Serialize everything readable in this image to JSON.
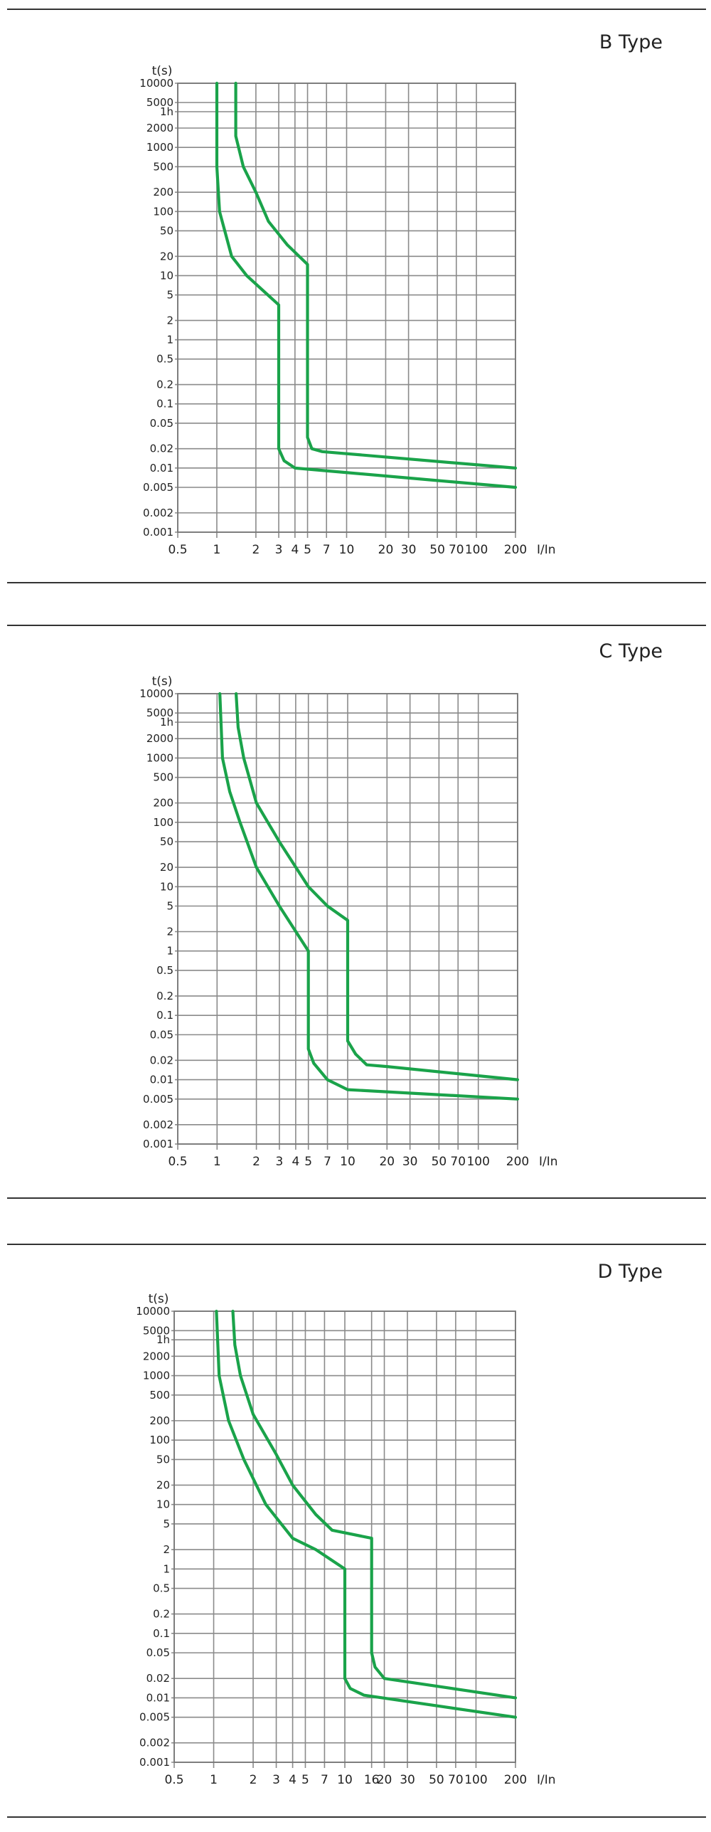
{
  "chart_data": [
    {
      "type": "line",
      "title": "B Type",
      "xlabel": "I/In",
      "ylabel": "t(s)",
      "x_scale": "log",
      "y_scale": "log",
      "xlim": [
        0.5,
        200
      ],
      "ylim": [
        0.001,
        10000
      ],
      "x_ticks": [
        0.5,
        1,
        2,
        3,
        4,
        5,
        7,
        10,
        20,
        30,
        50,
        70,
        100,
        200
      ],
      "x_tick_labels": [
        "0.5",
        "1",
        "2",
        "3",
        "4",
        "5",
        "7",
        "10",
        "20",
        "30",
        "50",
        "70",
        "100",
        "200"
      ],
      "y_ticks": [
        10000,
        5000,
        3600,
        2000,
        1000,
        500,
        200,
        100,
        50,
        20,
        10,
        5,
        2,
        1,
        0.5,
        0.2,
        0.1,
        0.05,
        0.02,
        0.01,
        0.005,
        0.002,
        0.001
      ],
      "y_tick_labels": [
        "10000",
        "5000",
        "1h",
        "2000",
        "1000",
        "500",
        "200",
        "100",
        "50",
        "20",
        "10",
        "5",
        "2",
        "1",
        "0.5",
        "0.2",
        "0.1",
        "0.05",
        "0.02",
        "0.01",
        "0.005",
        "0.002",
        "0.001"
      ],
      "grid": true,
      "color": "#1aa34a",
      "series": [
        {
          "values": [
            [
              1.0,
              10000
            ],
            [
              1.0,
              500
            ],
            [
              1.05,
              100
            ],
            [
              1.3,
              20
            ],
            [
              1.7,
              10
            ],
            [
              3.0,
              3.5
            ],
            [
              3.0,
              0.02
            ],
            [
              3.3,
              0.013
            ],
            [
              4.0,
              0.01
            ],
            [
              200,
              0.005
            ]
          ]
        },
        {
          "values": [
            [
              1.4,
              10000
            ],
            [
              1.4,
              1500
            ],
            [
              1.6,
              500
            ],
            [
              2.0,
              200
            ],
            [
              2.5,
              70
            ],
            [
              3.5,
              30
            ],
            [
              5.0,
              15
            ],
            [
              5.0,
              0.03
            ],
            [
              5.4,
              0.02
            ],
            [
              6.5,
              0.018
            ],
            [
              200,
              0.01
            ]
          ]
        }
      ]
    },
    {
      "type": "line",
      "title": "C Type",
      "xlabel": "I/In",
      "ylabel": "t(s)",
      "x_scale": "log",
      "y_scale": "log",
      "xlim": [
        0.5,
        200
      ],
      "ylim": [
        0.001,
        10000
      ],
      "x_ticks": [
        0.5,
        1,
        2,
        3,
        4,
        5,
        7,
        10,
        20,
        30,
        50,
        70,
        100,
        200
      ],
      "x_tick_labels": [
        "0.5",
        "1",
        "2",
        "3",
        "4",
        "5",
        "7",
        "10",
        "20",
        "30",
        "50",
        "70",
        "100",
        "200"
      ],
      "y_ticks": [
        10000,
        5000,
        3600,
        2000,
        1000,
        500,
        200,
        100,
        50,
        20,
        10,
        5,
        2,
        1,
        0.5,
        0.2,
        0.1,
        0.05,
        0.02,
        0.01,
        0.005,
        0.002,
        0.001
      ],
      "y_tick_labels": [
        "10000",
        "5000",
        "1h",
        "2000",
        "1000",
        "500",
        "200",
        "100",
        "50",
        "20",
        "10",
        "5",
        "2",
        "1",
        "0.5",
        "0.2",
        "0.1",
        "0.05",
        "0.02",
        "0.01",
        "0.005",
        "0.002",
        "0.001"
      ],
      "grid": true,
      "color": "#1aa34a",
      "series": [
        {
          "values": [
            [
              1.05,
              10000
            ],
            [
              1.1,
              1000
            ],
            [
              1.25,
              300
            ],
            [
              1.5,
              100
            ],
            [
              2.0,
              20
            ],
            [
              3.0,
              5
            ],
            [
              5.0,
              1
            ],
            [
              5.0,
              0.03
            ],
            [
              5.5,
              0.018
            ],
            [
              7.0,
              0.01
            ],
            [
              10.0,
              0.007
            ],
            [
              200,
              0.005
            ]
          ]
        },
        {
          "values": [
            [
              1.4,
              10000
            ],
            [
              1.45,
              3000
            ],
            [
              1.6,
              1000
            ],
            [
              2.0,
              200
            ],
            [
              3.0,
              50
            ],
            [
              5.0,
              10
            ],
            [
              7.0,
              5
            ],
            [
              10.0,
              3
            ],
            [
              10.0,
              0.04
            ],
            [
              11.5,
              0.025
            ],
            [
              14.0,
              0.017
            ],
            [
              20.0,
              0.016
            ],
            [
              200,
              0.01
            ]
          ]
        }
      ]
    },
    {
      "type": "line",
      "title": "D Type",
      "xlabel": "I/In",
      "ylabel": "t(s)",
      "x_scale": "log",
      "y_scale": "log",
      "xlim": [
        0.5,
        200
      ],
      "ylim": [
        0.001,
        10000
      ],
      "x_ticks": [
        0.5,
        1,
        2,
        3,
        4,
        5,
        7,
        10,
        16,
        20,
        30,
        50,
        70,
        100,
        200
      ],
      "x_tick_labels": [
        "0.5",
        "1",
        "2",
        "3",
        "4",
        "5",
        "7",
        "10",
        "16",
        "20",
        "30",
        "50",
        "70",
        "100",
        "200"
      ],
      "y_ticks": [
        10000,
        5000,
        3600,
        2000,
        1000,
        500,
        200,
        100,
        50,
        20,
        10,
        5,
        2,
        1,
        0.5,
        0.2,
        0.1,
        0.05,
        0.02,
        0.01,
        0.005,
        0.002,
        0.001
      ],
      "y_tick_labels": [
        "10000",
        "5000",
        "1h",
        "2000",
        "1000",
        "500",
        "200",
        "100",
        "50",
        "20",
        "10",
        "5",
        "2",
        "1",
        "0.5",
        "0.2",
        "0.1",
        "0.05",
        "0.02",
        "0.01",
        "0.005",
        "0.002",
        "0.001"
      ],
      "grid": true,
      "color": "#1aa34a",
      "series": [
        {
          "values": [
            [
              1.05,
              10000
            ],
            [
              1.1,
              1000
            ],
            [
              1.3,
              200
            ],
            [
              1.7,
              50
            ],
            [
              2.5,
              10
            ],
            [
              4.0,
              3
            ],
            [
              6.0,
              2
            ],
            [
              10.0,
              1
            ],
            [
              10.0,
              0.02
            ],
            [
              11.0,
              0.014
            ],
            [
              14.0,
              0.011
            ],
            [
              200,
              0.005
            ]
          ]
        },
        {
          "values": [
            [
              1.4,
              10000
            ],
            [
              1.45,
              3000
            ],
            [
              1.6,
              1000
            ],
            [
              2.0,
              250
            ],
            [
              3.0,
              60
            ],
            [
              4.0,
              20
            ],
            [
              6.0,
              7
            ],
            [
              8.0,
              4
            ],
            [
              16.0,
              3
            ],
            [
              16.0,
              0.05
            ],
            [
              17.0,
              0.03
            ],
            [
              20.0,
              0.02
            ],
            [
              200,
              0.01
            ]
          ]
        }
      ]
    }
  ]
}
